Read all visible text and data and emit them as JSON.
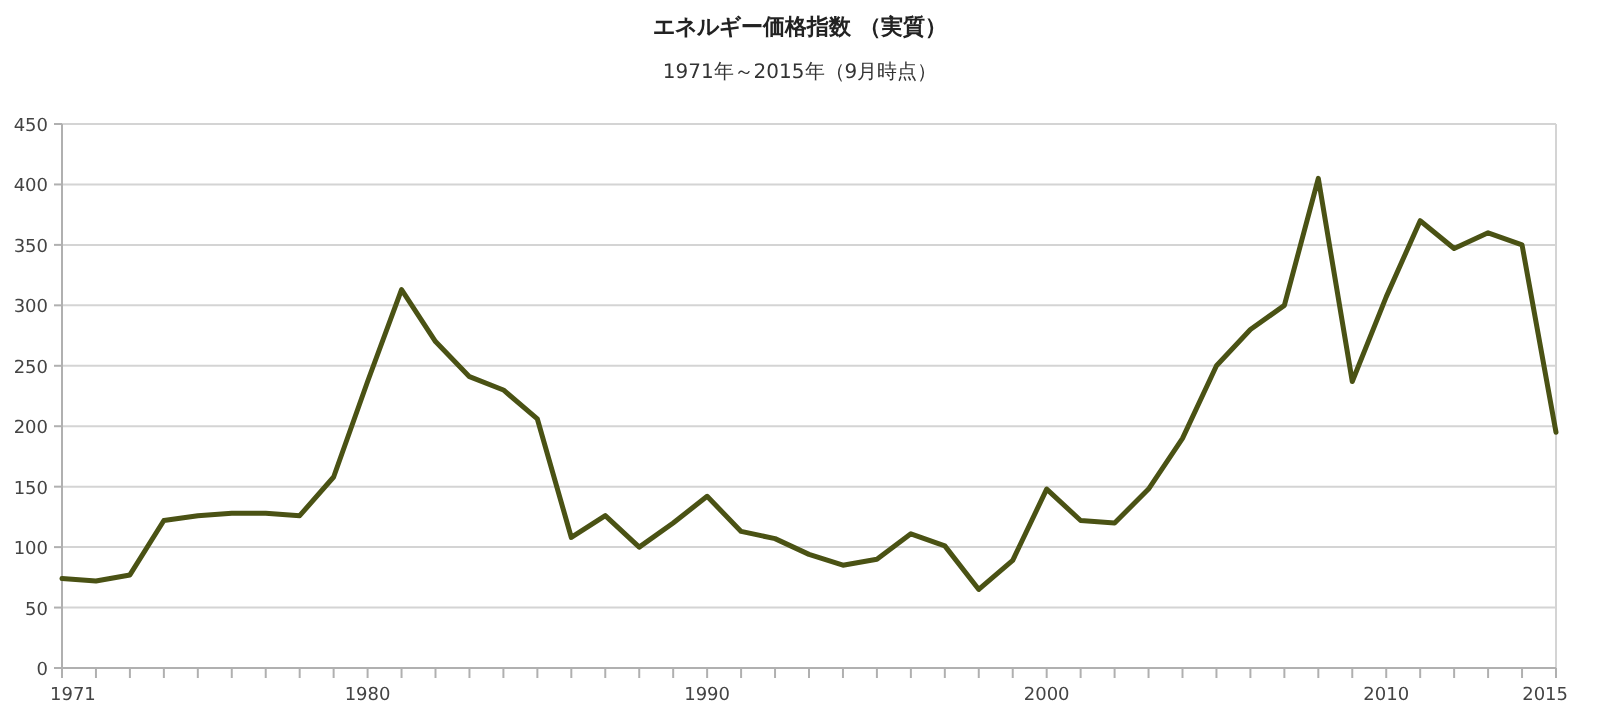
{
  "chart_data": {
    "type": "line",
    "title": "エネルギー価格指数 （実質）",
    "subtitle": "1971年～2015年（9月時点）",
    "x": [
      1971,
      1972,
      1973,
      1974,
      1975,
      1976,
      1977,
      1978,
      1979,
      1980,
      1981,
      1982,
      1983,
      1984,
      1985,
      1986,
      1987,
      1988,
      1989,
      1990,
      1991,
      1992,
      1993,
      1994,
      1995,
      1996,
      1997,
      1998,
      1999,
      2000,
      2001,
      2002,
      2003,
      2004,
      2005,
      2006,
      2007,
      2008,
      2009,
      2010,
      2011,
      2012,
      2013,
      2014,
      2015
    ],
    "series": [
      {
        "color": "#4a5214",
        "values": [
          74,
          72,
          77,
          122,
          126,
          128,
          128,
          126,
          158,
          237,
          313,
          270,
          241,
          230,
          206,
          108,
          126,
          100,
          120,
          142,
          113,
          107,
          94,
          85,
          90,
          111,
          101,
          65,
          89,
          148,
          122,
          120,
          148,
          190,
          250,
          280,
          300,
          405,
          237,
          307,
          370,
          347,
          360,
          350,
          195
        ]
      }
    ],
    "xlim": [
      1971,
      2015
    ],
    "xticks": [
      1971,
      {
        "value": 1972,
        "label": null
      },
      {
        "value": 1973,
        "label": null
      },
      {
        "value": 1974,
        "label": null
      },
      {
        "value": 1975,
        "label": null
      },
      {
        "value": 1976,
        "label": null
      },
      {
        "value": 1977,
        "label": null
      },
      {
        "value": 1978,
        "label": null
      },
      {
        "value": 1979,
        "label": null
      },
      1980,
      {
        "value": 1981,
        "label": null
      },
      {
        "value": 1982,
        "label": null
      },
      {
        "value": 1983,
        "label": null
      },
      {
        "value": 1984,
        "label": null
      },
      {
        "value": 1985,
        "label": null
      },
      {
        "value": 1986,
        "label": null
      },
      {
        "value": 1987,
        "label": null
      },
      {
        "value": 1988,
        "label": null
      },
      {
        "value": 1989,
        "label": null
      },
      1990,
      {
        "value": 1991,
        "label": null
      },
      {
        "value": 1992,
        "label": null
      },
      {
        "value": 1993,
        "label": null
      },
      {
        "value": 1994,
        "label": null
      },
      {
        "value": 1995,
        "label": null
      },
      {
        "value": 1996,
        "label": null
      },
      {
        "value": 1997,
        "label": null
      },
      {
        "value": 1998,
        "label": null
      },
      {
        "value": 1999,
        "label": null
      },
      2000,
      {
        "value": 2001,
        "label": null
      },
      {
        "value": 2002,
        "label": null
      },
      {
        "value": 2003,
        "label": null
      },
      {
        "value": 2004,
        "label": null
      },
      {
        "value": 2005,
        "label": null
      },
      {
        "value": 2006,
        "label": null
      },
      {
        "value": 2007,
        "label": null
      },
      {
        "value": 2008,
        "label": null
      },
      {
        "value": 2009,
        "label": null
      },
      2010,
      {
        "value": 2011,
        "label": null
      },
      {
        "value": 2012,
        "label": null
      },
      {
        "value": 2013,
        "label": null
      },
      {
        "value": 2014,
        "label": null
      },
      2015
    ],
    "ylim": [
      0,
      450
    ],
    "yticks": [
      0,
      50,
      100,
      150,
      200,
      250,
      300,
      350,
      400,
      450
    ],
    "grid": "y",
    "marker": "none",
    "line_style": "solid"
  }
}
